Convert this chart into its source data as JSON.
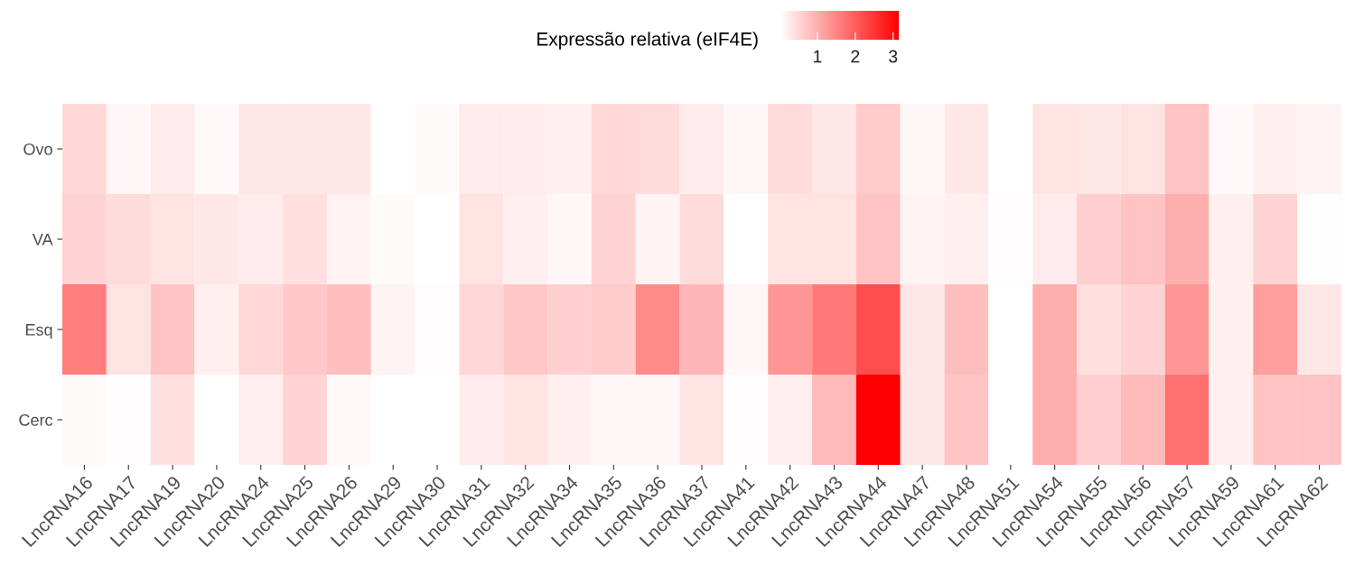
{
  "chart_data": {
    "type": "heatmap",
    "clabel": "Expressão relativa (eIF4E)",
    "categories": [
      "LncRNA16",
      "LncRNA17",
      "LncRNA19",
      "LncRNA20",
      "LncRNA24",
      "LncRNA25",
      "LncRNA26",
      "LncRNA29",
      "LncRNA30",
      "LncRNA31",
      "LncRNA32",
      "LncRNA34",
      "LncRNA35",
      "LncRNA36",
      "LncRNA37",
      "LncRNA41",
      "LncRNA42",
      "LncRNA43",
      "LncRNA44",
      "LncRNA47",
      "LncRNA48",
      "LncRNA51",
      "LncRNA54",
      "LncRNA55",
      "LncRNA56",
      "LncRNA57",
      "LncRNA59",
      "LncRNA61",
      "LncRNA62"
    ],
    "y_categories": [
      "Ovo",
      "VA",
      "Esq",
      "Cerc"
    ],
    "cells": [
      [
        0.5,
        0.1,
        0.25,
        0.08,
        0.3,
        0.3,
        0.3,
        0,
        0.05,
        0.25,
        0.25,
        0.2,
        0.5,
        0.45,
        0.25,
        0.1,
        0.45,
        0.3,
        0.65,
        0.1,
        0.3,
        0,
        0.35,
        0.3,
        0.35,
        0.75,
        0.08,
        0.2,
        0.15
      ],
      [
        0.55,
        0.45,
        0.35,
        0.3,
        0.25,
        0.4,
        0.15,
        0.05,
        0,
        0.35,
        0.2,
        0.1,
        0.55,
        0.15,
        0.45,
        0,
        0.35,
        0.35,
        0.75,
        0.15,
        0.2,
        0.03,
        0.25,
        0.6,
        0.75,
        1.0,
        0.2,
        0.55,
        0.02
      ],
      [
        1.6,
        0.35,
        0.75,
        0.2,
        0.5,
        0.7,
        0.8,
        0.15,
        0.03,
        0.5,
        0.7,
        0.6,
        0.65,
        1.45,
        0.9,
        0.1,
        1.3,
        1.65,
        2.2,
        0.3,
        0.8,
        0,
        1.0,
        0.4,
        0.55,
        1.3,
        0.2,
        1.2,
        0.3
      ],
      [
        0.05,
        0.03,
        0.4,
        0,
        0.2,
        0.55,
        0.08,
        0,
        0,
        0.25,
        0.35,
        0.2,
        0.1,
        0.1,
        0.35,
        0.03,
        0.2,
        0.85,
        3.15,
        0.3,
        0.75,
        0,
        1.0,
        0.6,
        0.85,
        1.75,
        0.2,
        0.75,
        0.75
      ]
    ],
    "colors": [
      "#ffffff",
      "#ff0000"
    ],
    "clim": [
      0,
      3.15
    ],
    "cticks": [
      1,
      2,
      3
    ],
    "grid": false
  }
}
